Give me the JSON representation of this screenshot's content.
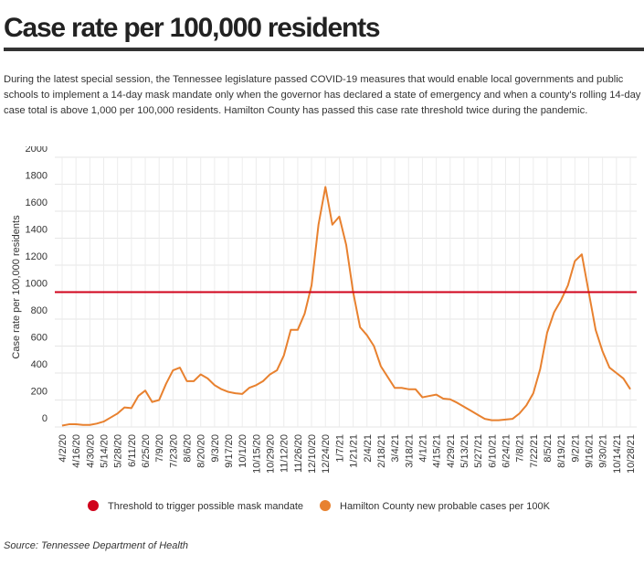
{
  "chart_data": {
    "type": "line",
    "title": "Case rate per 100,000 residents",
    "description": "During the latest special session, the Tennessee legislature passed COVID-19 measures that would enable local governments and public schools to implement a 14-day mask mandate only when the governor has declared a state of emergency and when a county's rolling 14-day case total is above 1,000 per 100,000 residents. Hamilton County has passed this case rate threshold twice during the pandemic.",
    "y_label": "Case rate per 100,000 residents",
    "source": "Source: Tennessee Department of Health",
    "categories": [
      "4/2/20",
      null,
      "4/16/20",
      null,
      "4/30/20",
      null,
      "5/14/20",
      null,
      "5/28/20",
      null,
      "6/11/20",
      null,
      "6/25/20",
      null,
      "7/9/20",
      null,
      "7/23/20",
      null,
      "8/6/20",
      null,
      "8/20/20",
      null,
      "9/3/20",
      null,
      "9/17/20",
      null,
      "10/1/20",
      null,
      "10/15/20",
      null,
      "10/29/20",
      null,
      "11/12/20",
      null,
      "11/26/20",
      null,
      "12/10/20",
      null,
      "12/24/20",
      null,
      "1/7/21",
      null,
      "1/21/21",
      null,
      "2/4/21",
      null,
      "2/18/21",
      null,
      "3/4/21",
      null,
      "3/18/21",
      null,
      "4/1/21",
      null,
      "4/15/21",
      null,
      "4/29/21",
      null,
      "5/13/21",
      null,
      "5/27/21",
      null,
      "6/10/21",
      null,
      "6/24/21",
      null,
      "7/8/21",
      null,
      "7/22/21",
      null,
      "8/5/21",
      null,
      "8/19/21",
      null,
      "9/2/21",
      null,
      "9/16/21",
      null,
      "9/30/21",
      null,
      "10/14/21",
      null,
      "10/28/21"
    ],
    "threshold": {
      "name": "Threshold to trigger possible mask mandate",
      "value": 1000,
      "color": "#d0021b"
    },
    "series": [
      {
        "name": "Hamilton County new probable cases per 100K",
        "color": "#e8812f",
        "values": [
          10,
          20,
          20,
          15,
          15,
          25,
          40,
          70,
          100,
          145,
          140,
          230,
          270,
          185,
          200,
          320,
          420,
          440,
          340,
          340,
          390,
          360,
          310,
          280,
          260,
          250,
          245,
          290,
          310,
          340,
          390,
          420,
          530,
          720,
          720,
          840,
          1050,
          1500,
          1780,
          1500,
          1560,
          1350,
          1000,
          740,
          680,
          600,
          450,
          370,
          290,
          290,
          280,
          280,
          220,
          230,
          240,
          210,
          205,
          180,
          150,
          120,
          90,
          60,
          50,
          50,
          55,
          60,
          100,
          160,
          250,
          430,
          700,
          850,
          940,
          1050,
          1230,
          1280,
          1000,
          720,
          560,
          440,
          400,
          360,
          280
        ]
      }
    ],
    "ylim": [
      0,
      2000
    ],
    "yticks": [
      0,
      200,
      400,
      600,
      800,
      1000,
      1200,
      1400,
      1600,
      1800,
      2000
    ],
    "grid": true
  }
}
